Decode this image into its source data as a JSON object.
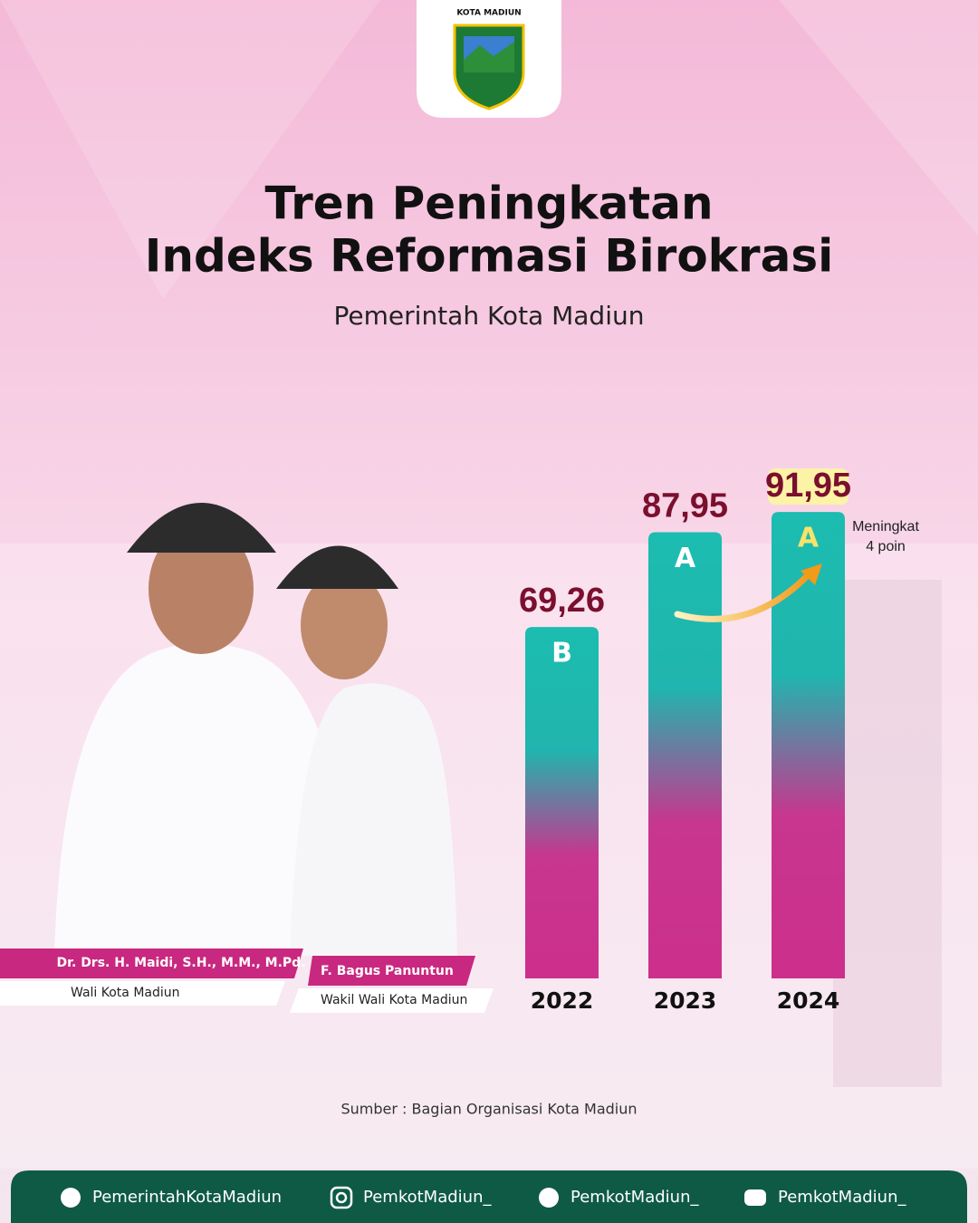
{
  "logo": {
    "text": "KOTA MADIUN"
  },
  "chart_data": {
    "type": "bar",
    "title": [
      "Tren Peningkatan",
      "Indeks Reformasi Birokrasi"
    ],
    "subtitle": "Pemerintah Kota Madiun",
    "categories": [
      "2022",
      "2023",
      "2024"
    ],
    "values": [
      69.26,
      87.95,
      91.95
    ],
    "value_labels": [
      "69,26",
      "87,95",
      "91,95"
    ],
    "grades": [
      "B",
      "A",
      "A"
    ],
    "annotation": [
      "Meningkat",
      "4 poin"
    ]
  },
  "people": [
    {
      "name": "Dr. Drs. H. Maidi, S.H., M.M., M.Pd.",
      "role": "Wali Kota Madiun"
    },
    {
      "name": "F. Bagus Panuntun",
      "role": "Wakil Wali Kota Madiun"
    }
  ],
  "source": "Sumber : Bagian Organisasi Kota Madiun",
  "footer": [
    "PemerintahKotaMadiun",
    "PemkotMadiun_",
    "PemkotMadiun_",
    "PemkotMadiun_"
  ]
}
